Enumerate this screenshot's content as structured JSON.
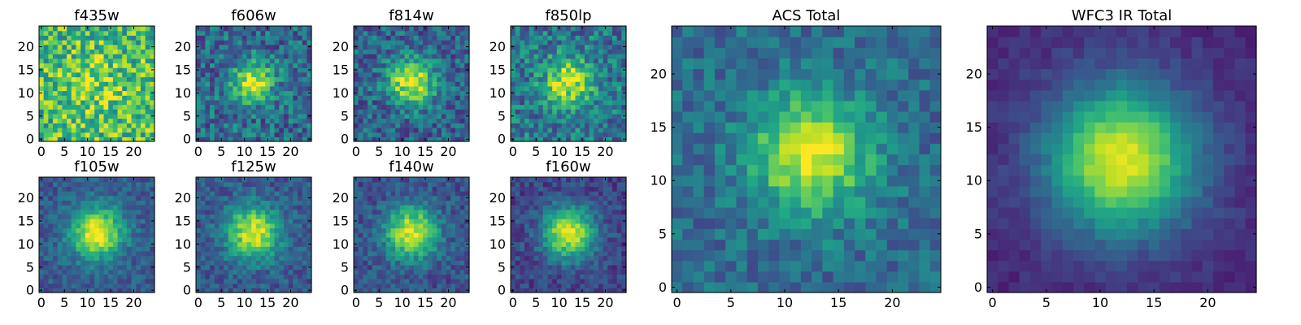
{
  "chart_data": {
    "type": "heatmap",
    "colormap": "viridis",
    "grid_size": 25,
    "panels": [
      {
        "id": "f435w",
        "title": "f435w",
        "xticks": [
          "0",
          "5",
          "10",
          "15",
          "20"
        ],
        "yticks": [
          "0",
          "5",
          "10",
          "15",
          "20"
        ],
        "center": [
          12,
          12
        ],
        "sigma": 5.0,
        "peak": 0.15,
        "floor": 0.68,
        "noise": 0.28
      },
      {
        "id": "f606w",
        "title": "f606w",
        "xticks": [
          "0",
          "5",
          "10",
          "15",
          "20"
        ],
        "yticks": [
          "0",
          "5",
          "10",
          "15",
          "20"
        ],
        "center": [
          12,
          12.5
        ],
        "sigma": 3.0,
        "peak": 0.6,
        "floor": 0.35,
        "noise": 0.22
      },
      {
        "id": "f814w",
        "title": "f814w",
        "xticks": [
          "0",
          "5",
          "10",
          "15",
          "20"
        ],
        "yticks": [
          "0",
          "5",
          "10",
          "15",
          "20"
        ],
        "center": [
          12,
          12.5
        ],
        "sigma": 3.5,
        "peak": 0.65,
        "floor": 0.32,
        "noise": 0.2
      },
      {
        "id": "f850lp",
        "title": "f850lp",
        "xticks": [
          "0",
          "5",
          "10",
          "15",
          "20"
        ],
        "yticks": [
          "0",
          "5",
          "10",
          "15",
          "20"
        ],
        "center": [
          12,
          12.5
        ],
        "sigma": 3.5,
        "peak": 0.55,
        "floor": 0.4,
        "noise": 0.22
      },
      {
        "id": "f105w",
        "title": "f105w",
        "xticks": [
          "0",
          "5",
          "10",
          "15",
          "20"
        ],
        "yticks": [
          "0",
          "5",
          "10",
          "15",
          "20"
        ],
        "center": [
          12,
          12.5
        ],
        "sigma": 4.0,
        "peak": 0.7,
        "floor": 0.28,
        "noise": 0.12
      },
      {
        "id": "f125w",
        "title": "f125w",
        "xticks": [
          "0",
          "5",
          "10",
          "15",
          "20"
        ],
        "yticks": [
          "0",
          "5",
          "10",
          "15",
          "20"
        ],
        "center": [
          12,
          12.5
        ],
        "sigma": 4.0,
        "peak": 0.68,
        "floor": 0.28,
        "noise": 0.13
      },
      {
        "id": "f140w",
        "title": "f140w",
        "xticks": [
          "0",
          "5",
          "10",
          "15",
          "20"
        ],
        "yticks": [
          "0",
          "5",
          "10",
          "15",
          "20"
        ],
        "center": [
          12,
          12.5
        ],
        "sigma": 4.0,
        "peak": 0.7,
        "floor": 0.25,
        "noise": 0.13
      },
      {
        "id": "f160w",
        "title": "f160w",
        "xticks": [
          "0",
          "5",
          "10",
          "15",
          "20"
        ],
        "yticks": [
          "0",
          "5",
          "10",
          "15",
          "20"
        ],
        "center": [
          12,
          12.5
        ],
        "sigma": 4.0,
        "peak": 0.75,
        "floor": 0.2,
        "noise": 0.12
      },
      {
        "id": "acs_total",
        "title": "ACS Total",
        "xticks": [
          "0",
          "5",
          "10",
          "15",
          "20"
        ],
        "yticks": [
          "0",
          "5",
          "10",
          "15",
          "20"
        ],
        "center": [
          12.5,
          12.5
        ],
        "sigma": 3.8,
        "peak": 0.62,
        "floor": 0.35,
        "noise": 0.14
      },
      {
        "id": "wfc3_ir_total",
        "title": "WFC3 IR Total",
        "xticks": [
          "0",
          "5",
          "10",
          "15",
          "20"
        ],
        "yticks": [
          "0",
          "5",
          "10",
          "15",
          "20"
        ],
        "center": [
          12,
          12
        ],
        "sigma": 4.8,
        "peak": 0.85,
        "floor": 0.12,
        "noise": 0.05
      }
    ]
  }
}
